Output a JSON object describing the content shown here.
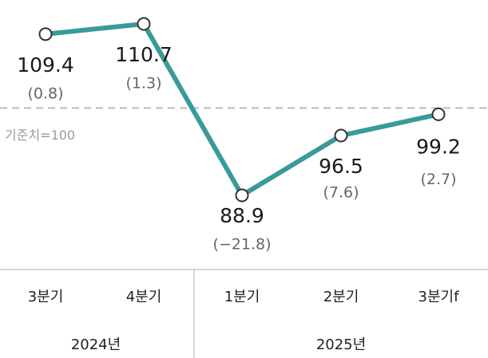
{
  "chart_data": {
    "type": "line",
    "categories": [
      "3분기",
      "4분기",
      "1분기",
      "2분기",
      "3분기f"
    ],
    "values": [
      109.4,
      110.7,
      88.9,
      96.5,
      99.2
    ],
    "change_labels": [
      "(0.8)",
      "(1.3)",
      "(−21.8)",
      "(7.6)",
      "(2.7)"
    ],
    "color": "#3a9a9a",
    "reference": {
      "value": 100,
      "label": "기준치=100"
    },
    "groups": [
      "2024년",
      "2025년"
    ]
  }
}
